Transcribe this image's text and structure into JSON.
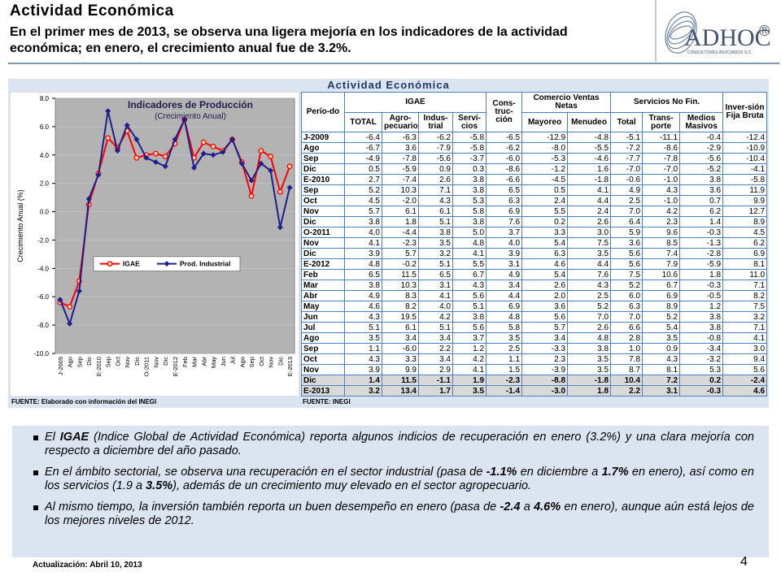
{
  "header": {
    "title": "Actividad Económica",
    "subtitle": "En el primer mes de 2013, se observa una ligera mejoría en los indicadores de la actividad económica; en enero, el crecimiento anual fue de 3.2%."
  },
  "logo": {
    "text": "ADHOC",
    "mark": "®",
    "tagline": "CONSULTORES ASOCIADOS S.C."
  },
  "panel_title": "Actividad Económica",
  "chart_data": {
    "type": "line",
    "title": "Indicadores de Producción",
    "subtitle": "(Crecimiento Anual)",
    "y_label": "Crecimiento Anual (%)",
    "categories": [
      "J-2009",
      "Ago",
      "Sep",
      "Dic",
      "E-2010",
      "Sep",
      "Oct",
      "Nov",
      "Dic",
      "O-2011",
      "Nov",
      "Dic",
      "E-2012",
      "Feb",
      "Mar",
      "Abr",
      "May",
      "Jun",
      "Jul",
      "Ago",
      "Sep",
      "Oct",
      "Nov",
      "Dic",
      "E-2013"
    ],
    "series": [
      {
        "name": "IGAE",
        "color": "#ff0000",
        "marker": "circle",
        "values": [
          -6.4,
          -6.7,
          -4.9,
          0.5,
          2.7,
          5.2,
          4.5,
          5.7,
          3.8,
          4.0,
          4.1,
          3.9,
          4.8,
          6.5,
          3.8,
          4.9,
          4.6,
          4.3,
          5.1,
          3.5,
          1.1,
          4.3,
          3.9,
          1.4,
          3.2
        ]
      },
      {
        "name": "Prod. Industrial",
        "color": "#1f1f8c",
        "marker": "diamond",
        "values": [
          -6.2,
          -7.9,
          -5.6,
          0.9,
          2.6,
          7.1,
          4.3,
          6.1,
          5.1,
          3.8,
          3.5,
          3.2,
          5.1,
          6.5,
          3.1,
          4.1,
          4.0,
          4.2,
          5.1,
          3.4,
          2.2,
          3.4,
          2.9,
          -1.1,
          1.7
        ]
      }
    ],
    "ylim": [
      -10,
      8
    ],
    "yticks": [
      {
        "value": -10,
        "label": "-10.0"
      },
      {
        "value": -8,
        "label": "-8.0"
      },
      {
        "value": -6,
        "label": "-6.0"
      },
      {
        "value": -4,
        "label": "-4.0"
      },
      {
        "value": -2,
        "label": "-2.0"
      },
      {
        "value": 0,
        "label": "0.0"
      },
      {
        "value": 2,
        "label": "2.0"
      },
      {
        "value": 4,
        "label": "4.0"
      },
      {
        "value": 6,
        "label": "6.0"
      },
      {
        "value": 8,
        "label": "8.0"
      }
    ],
    "grid": true,
    "legend": "center",
    "source": "FUENTE: Elaborado con información del INEGI"
  },
  "table": {
    "groups": [
      "Perío-do",
      "IGAE",
      "Cons-truc-ción",
      "Comercio Ventas Netas",
      "Servicios No Fin.",
      "Inver-sión Fija Bruta"
    ],
    "columns": [
      "TOTAL",
      "Agro-pecuario",
      "Indus-trial",
      "Servi-cios",
      "Mayoreo",
      "Menudeo",
      "Total",
      "Trans-porte",
      "Medios Masivos"
    ],
    "rows": [
      [
        "J-2009",
        "-6.4",
        "-6.3",
        "-6.2",
        "-5.8",
        "-6.5",
        "-12.9",
        "-4.8",
        "-5.1",
        "-11.1",
        "-0.4",
        "-12.4"
      ],
      [
        "Ago",
        "-6.7",
        "3.6",
        "-7.9",
        "-5.8",
        "-6.2",
        "-8.0",
        "-5.5",
        "-7.2",
        "-8.6",
        "-2.9",
        "-10.9"
      ],
      [
        "Sep",
        "-4.9",
        "-7.8",
        "-5.6",
        "-3.7",
        "-6.0",
        "-5.3",
        "-4.6",
        "-7.7",
        "-7.8",
        "-5.6",
        "-10.4"
      ],
      [
        "Dic",
        "0.5",
        "-5.9",
        "0.9",
        "0.3",
        "-8.6",
        "-1.2",
        "1.6",
        "-7.0",
        "-7.0",
        "-5.2",
        "-4.1"
      ],
      [
        "E-2010",
        "2.7",
        "-7.4",
        "2.6",
        "3.8",
        "-6.6",
        "-4.5",
        "-1.8",
        "-0.6",
        "-1.0",
        "3.8",
        "-5.8"
      ],
      [
        "Sep",
        "5.2",
        "10.3",
        "7.1",
        "3.8",
        "6.5",
        "0.5",
        "4.1",
        "4.9",
        "4.3",
        "3.6",
        "11.9"
      ],
      [
        "Oct",
        "4.5",
        "-2.0",
        "4.3",
        "5.3",
        "6.3",
        "2.4",
        "4.4",
        "2.5",
        "-1.0",
        "0.7",
        "9.9"
      ],
      [
        "Nov",
        "5.7",
        "6.1",
        "6.1",
        "5.8",
        "6.9",
        "5.5",
        "2.4",
        "7.0",
        "4.2",
        "6.2",
        "12.7"
      ],
      [
        "Dic",
        "3.8",
        "1.8",
        "5.1",
        "3.8",
        "7.6",
        "0.2",
        "2.6",
        "6.4",
        "2.3",
        "1.4",
        "8.9"
      ],
      [
        "O-2011",
        "4.0",
        "-4.4",
        "3.8",
        "5.0",
        "3.7",
        "3.3",
        "3.0",
        "5.9",
        "9.6",
        "-0.3",
        "4.5"
      ],
      [
        "Nov",
        "4.1",
        "-2.3",
        "3.5",
        "4.8",
        "4.0",
        "5.4",
        "7.5",
        "3.6",
        "8.5",
        "-1.3",
        "6.2"
      ],
      [
        "Dic",
        "3.9",
        "5.7",
        "3.2",
        "4.1",
        "3.9",
        "6.3",
        "3.5",
        "5.6",
        "7.4",
        "-2.8",
        "6.9"
      ],
      [
        "E-2012",
        "4.8",
        "-0.2",
        "5.1",
        "5.5",
        "3.1",
        "4.6",
        "4.4",
        "5.6",
        "7.9",
        "-5.9",
        "8.1"
      ],
      [
        "Feb",
        "6.5",
        "11.5",
        "6.5",
        "6.7",
        "4.9",
        "5.4",
        "7.6",
        "7.5",
        "10.6",
        "1.8",
        "11.0"
      ],
      [
        "Mar",
        "3.8",
        "10.3",
        "3.1",
        "4.3",
        "3.4",
        "2.6",
        "4.3",
        "5.2",
        "6.7",
        "-0.3",
        "7.1"
      ],
      [
        "Abr",
        "4.9",
        "8.3",
        "4.1",
        "5.6",
        "4.4",
        "2.0",
        "2.5",
        "6.0",
        "6.9",
        "-0.5",
        "8.2"
      ],
      [
        "May",
        "4.6",
        "8.2",
        "4.0",
        "5.1",
        "6.9",
        "3.6",
        "5.2",
        "6.3",
        "8.9",
        "1.2",
        "7.5"
      ],
      [
        "Jun",
        "4.3",
        "19.5",
        "4.2",
        "3.8",
        "4.8",
        "5.6",
        "7.0",
        "7.0",
        "5.2",
        "3.8",
        "3.2"
      ],
      [
        "Jul",
        "5.1",
        "6.1",
        "5.1",
        "5.6",
        "5.8",
        "5.7",
        "2.6",
        "6.6",
        "5.4",
        "3.8",
        "7.1"
      ],
      [
        "Ago",
        "3.5",
        "3.4",
        "3.4",
        "3.7",
        "3.5",
        "3.4",
        "4.8",
        "2.8",
        "3.5",
        "-0.8",
        "4.1"
      ],
      [
        "Sep",
        "1.1",
        "-6.0",
        "2.2",
        "1.2",
        "2.5",
        "-3.3",
        "3.8",
        "1.0",
        "0.9",
        "-3.4",
        "3.0"
      ],
      [
        "Oct",
        "4.3",
        "3.3",
        "3.4",
        "4.2",
        "1.1",
        "2.3",
        "3.5",
        "7.8",
        "4.3",
        "-3.2",
        "9.4"
      ],
      [
        "Nov",
        "3.9",
        "9.9",
        "2.9",
        "4.1",
        "1.5",
        "-3.9",
        "3.5",
        "8.7",
        "8.1",
        "5.3",
        "5.6"
      ],
      [
        "Dic",
        "1.4",
        "11.5",
        "-1.1",
        "1.9",
        "-2.3",
        "-8.8",
        "-1.8",
        "10.4",
        "7.2",
        "0.2",
        "-2.4"
      ],
      [
        "E-2013",
        "3.2",
        "13.4",
        "1.7",
        "3.5",
        "-1.4",
        "-3.0",
        "1.8",
        "2.2",
        "3.1",
        "-0.3",
        "4.6"
      ]
    ],
    "source": "FUENTE: INEGI"
  },
  "bullets": [
    [
      "El ",
      "IGAE",
      " (Indice Global de Actividad Económica) reporta algunos indicios de recuperación en enero (3.2%) y una clara mejoría con respecto a diciembre del año pasado."
    ],
    [
      "En el ámbito sectorial, se observa una recuperación en el sector industrial (pasa de ",
      "-1.1%",
      " en diciembre a ",
      "1.7%",
      " en enero), así como en los servicios (1.9 a ",
      "3.5%",
      "), además de un crecimiento muy elevado en el sector agropecuario."
    ],
    [
      "Al mismo tiempo, la inversión también reporta un buen desempeño en enero (pasa de ",
      "-2.4",
      " a ",
      "4.6%",
      " en enero), aunque aún está lejos de los mejores niveles de 2012."
    ]
  ],
  "footer": {
    "update": "Actualización: Abril 10, 2013",
    "page": "4"
  }
}
